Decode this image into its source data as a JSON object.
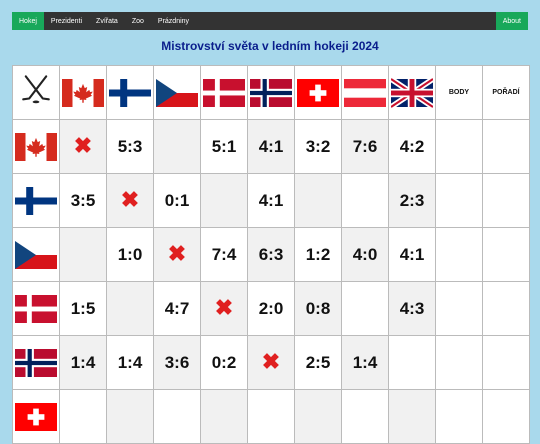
{
  "nav": {
    "items": [
      "Hokej",
      "Prezidenti",
      "Zvířata",
      "Zoo",
      "Prázdniny"
    ],
    "about": "About"
  },
  "title": "Mistrovství světa v ledním hokeji 2024",
  "header": {
    "body": "BODY",
    "poradi": "POŘADÍ"
  },
  "teams": [
    "canada",
    "finland",
    "czech",
    "denmark",
    "norway",
    "switzerland",
    "austria",
    "great-britain"
  ],
  "icons": {
    "corner": "hockey-sticks-icon",
    "cross": "✖"
  },
  "colors": {
    "nav_active": "#18a85a",
    "title": "#0a1e8c",
    "cross": "#e02020"
  },
  "rows": [
    {
      "team": "canada",
      "cells": [
        "X",
        "5:3",
        "",
        "5:1",
        "4:1",
        "3:2",
        "7:6",
        "4:2"
      ]
    },
    {
      "team": "finland",
      "cells": [
        "3:5",
        "X",
        "0:1",
        "",
        "4:1",
        "",
        "",
        "2:3"
      ]
    },
    {
      "team": "czech",
      "cells": [
        "",
        "1:0",
        "X",
        "7:4",
        "6:3",
        "1:2",
        "4:0",
        "4:1"
      ]
    },
    {
      "team": "denmark",
      "cells": [
        "1:5",
        "",
        "4:7",
        "X",
        "2:0",
        "0:8",
        "",
        "4:3"
      ]
    },
    {
      "team": "norway",
      "cells": [
        "1:4",
        "1:4",
        "3:6",
        "0:2",
        "X",
        "2:5",
        "1:4",
        ""
      ]
    },
    {
      "team": "switzerland",
      "cells": [
        "",
        "",
        "",
        "",
        "",
        "",
        "",
        ""
      ]
    }
  ]
}
